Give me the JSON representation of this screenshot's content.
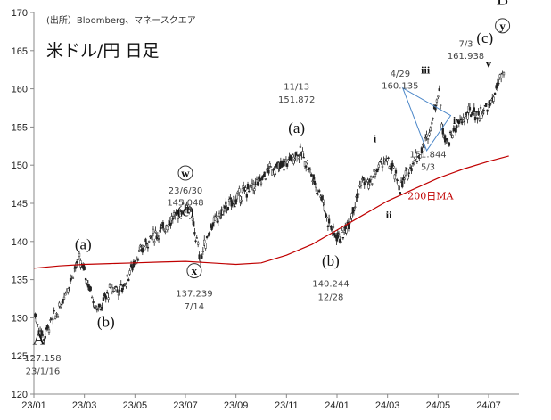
{
  "source_note": "(出所）Bloomberg、マネースクエア",
  "title": "米ドル/円 日足",
  "chart_data": {
    "type": "line",
    "subtype": "candlestick",
    "ylim": [
      120,
      170
    ],
    "y_ticks": [
      "120",
      "125",
      "130",
      "135",
      "140",
      "145",
      "150",
      "155",
      "160",
      "165",
      "170"
    ],
    "x_ticks": [
      "23/01",
      "23/03",
      "23/05",
      "23/07",
      "23/09",
      "23/11",
      "24/01",
      "24/03",
      "24/05",
      "24/07"
    ],
    "x_tick_months": [
      0,
      2,
      4,
      6,
      8,
      10,
      12,
      14,
      16,
      18
    ],
    "x_range_months": [
      0,
      19.2
    ],
    "series": [
      {
        "name": "",
        "x": [
          0.05,
          0.2,
          0.4,
          0.6,
          0.8,
          1.0,
          1.2,
          1.4,
          1.6,
          1.8,
          2.0,
          2.2,
          2.4,
          2.6,
          2.8,
          3.0,
          3.2,
          3.4,
          3.6,
          3.8,
          4.0,
          4.3,
          4.6,
          4.9,
          5.2,
          5.5,
          5.8,
          6.0,
          6.2,
          6.45,
          6.6,
          6.8,
          7.0,
          7.3,
          7.6,
          8.0,
          8.3,
          8.6,
          9.0,
          9.3,
          9.6,
          9.9,
          10.2,
          10.45,
          10.6,
          10.9,
          11.2,
          11.4,
          11.6,
          11.9,
          12.2,
          12.5,
          12.8,
          13.0,
          13.3,
          13.6,
          13.8,
          13.95,
          14.2,
          14.5,
          14.8,
          15.0,
          15.3,
          15.5,
          15.7,
          15.9,
          16.05,
          16.15,
          16.4,
          16.7,
          17.0,
          17.3,
          17.6,
          17.9,
          18.1,
          18.3,
          18.45,
          18.55,
          18.65
        ],
        "y": [
          130.5,
          128.5,
          127.5,
          129,
          130,
          131,
          133,
          134.5,
          136.5,
          137.5,
          136,
          134,
          132,
          131,
          132.5,
          133.5,
          134,
          133.5,
          134.5,
          136,
          137.5,
          139,
          140.5,
          141,
          142,
          143,
          144,
          145,
          144,
          140,
          137.5,
          140,
          142,
          143,
          144.5,
          145.5,
          146.5,
          147,
          148,
          149.5,
          149.5,
          150,
          151,
          151.5,
          151.5,
          149.5,
          147,
          146,
          143,
          141,
          140.5,
          143,
          146,
          148,
          147.5,
          149.5,
          150.5,
          150.5,
          149.5,
          147,
          149,
          150.5,
          151.5,
          153,
          155,
          158,
          160,
          155,
          153,
          155,
          156,
          157,
          156.5,
          157.5,
          158,
          160,
          161,
          161.9,
          160.5
        ]
      },
      {
        "name": "200日MA",
        "x": [
          0,
          1,
          2,
          3,
          4,
          5,
          6,
          7,
          8,
          9,
          10,
          11,
          12,
          13,
          14,
          15,
          16,
          17,
          18,
          18.8
        ],
        "y": [
          136.5,
          136.8,
          137,
          137.1,
          137.2,
          137.3,
          137.4,
          137.2,
          137.0,
          137.2,
          138.2,
          139.6,
          141.5,
          143.4,
          145.3,
          146.8,
          148.3,
          149.5,
          150.5,
          151.2
        ]
      }
    ],
    "annotations": [
      {
        "label": "A",
        "x": 0.2,
        "y": 126.5,
        "style": "big"
      },
      {
        "label": "127.158",
        "x": 0.35,
        "y": 124.3,
        "style": "ann"
      },
      {
        "label": "23/1/16",
        "x": 0.35,
        "y": 122.6,
        "style": "ann"
      },
      {
        "label": "(a)",
        "x": 1.95,
        "y": 139.0,
        "style": "wave"
      },
      {
        "label": "(b)",
        "x": 2.85,
        "y": 128.8,
        "style": "wave"
      },
      {
        "label": "23/6/30",
        "x": 6.0,
        "y": 146.3,
        "style": "ann"
      },
      {
        "label": "145.048",
        "x": 6.0,
        "y": 144.7,
        "style": "ann"
      },
      {
        "label": "(c)",
        "x": 6.0,
        "y": 143.3,
        "style": "wave"
      },
      {
        "label": "w",
        "x": 6.0,
        "y": 148.5,
        "style": "circ"
      },
      {
        "label": "x",
        "x": 6.35,
        "y": 135.7,
        "style": "circ"
      },
      {
        "label": "137.239",
        "x": 6.35,
        "y": 132.8,
        "style": "ann"
      },
      {
        "label": "7/14",
        "x": 6.35,
        "y": 131.1,
        "style": "ann"
      },
      {
        "label": "11/13",
        "x": 10.4,
        "y": 159.9,
        "style": "ann"
      },
      {
        "label": "151.872",
        "x": 10.4,
        "y": 158.2,
        "style": "ann"
      },
      {
        "label": "(a)",
        "x": 10.4,
        "y": 154.2,
        "style": "wave"
      },
      {
        "label": "(b)",
        "x": 11.75,
        "y": 136.8,
        "style": "wave"
      },
      {
        "label": "140.244",
        "x": 11.75,
        "y": 134.1,
        "style": "ann"
      },
      {
        "label": "12/28",
        "x": 11.75,
        "y": 132.3,
        "style": "ann"
      },
      {
        "label": "i",
        "x": 13.5,
        "y": 153.0,
        "style": "wavesm"
      },
      {
        "label": "ii",
        "x": 14.05,
        "y": 143.0,
        "style": "wavesm"
      },
      {
        "label": "4/29",
        "x": 14.5,
        "y": 161.6,
        "style": "ann"
      },
      {
        "label": "160.135",
        "x": 14.5,
        "y": 160.0,
        "style": "ann"
      },
      {
        "label": "iii",
        "x": 15.5,
        "y": 162.0,
        "style": "wavesm"
      },
      {
        "label": "151.844",
        "x": 15.6,
        "y": 151.0,
        "style": "ann"
      },
      {
        "label": "5/3",
        "x": 15.6,
        "y": 149.4,
        "style": "ann"
      },
      {
        "label": "iv",
        "x": 16.75,
        "y": 155.4,
        "style": "wavesm"
      },
      {
        "label": "7/3",
        "x": 17.1,
        "y": 165.5,
        "style": "ann"
      },
      {
        "label": "161.938",
        "x": 17.1,
        "y": 163.9,
        "style": "ann"
      },
      {
        "label": "(c)",
        "x": 17.85,
        "y": 166.0,
        "style": "wave"
      },
      {
        "label": "v",
        "x": 18.0,
        "y": 162.8,
        "style": "wavesm"
      },
      {
        "label": "B",
        "x": 18.55,
        "y": 171.0,
        "style": "big"
      },
      {
        "label": "y",
        "x": 18.55,
        "y": 167.8,
        "style": "circ"
      },
      {
        "label": "200日MA",
        "x": 15.7,
        "y": 145.5,
        "style": "ma"
      }
    ],
    "triangle": [
      [
        14.6,
        160.1
      ],
      [
        15.55,
        151.9
      ],
      [
        16.5,
        156.5
      ]
    ],
    "colors": {
      "candle": "#222222",
      "ma": "#c00000",
      "triangle": "#4a86c8",
      "axis": "#888888"
    },
    "grid": false
  }
}
